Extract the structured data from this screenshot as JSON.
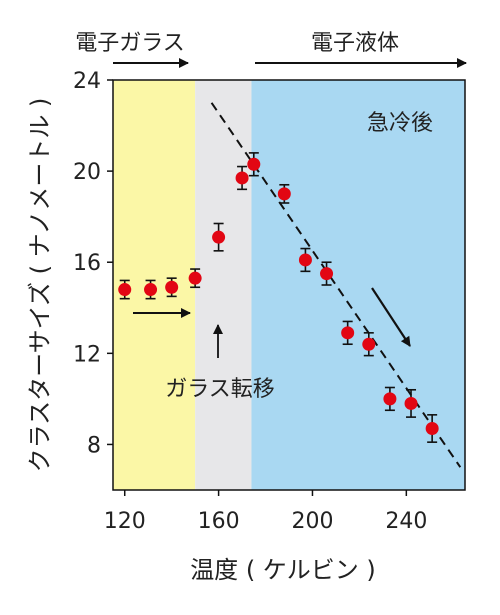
{
  "chart_data": {
    "type": "scatter",
    "xlabel": "温度 ( ケルビン )",
    "ylabel": "クラスターサイズ ( ナノメートル )",
    "xlim": [
      115,
      265
    ],
    "ylim": [
      6,
      24
    ],
    "x_ticks": [
      "120",
      "160",
      "200",
      "240"
    ],
    "y_ticks": [
      "8",
      "12",
      "16",
      "20",
      "24"
    ],
    "x_tick_values": [
      120,
      160,
      200,
      240
    ],
    "y_tick_values": [
      8,
      12,
      16,
      20,
      24
    ],
    "points": [
      {
        "x": 120,
        "y": 14.8,
        "err": 0.4
      },
      {
        "x": 131,
        "y": 14.8,
        "err": 0.4
      },
      {
        "x": 140,
        "y": 14.9,
        "err": 0.4
      },
      {
        "x": 150,
        "y": 15.3,
        "err": 0.4
      },
      {
        "x": 160,
        "y": 17.1,
        "err": 0.6
      },
      {
        "x": 170,
        "y": 19.7,
        "err": 0.5
      },
      {
        "x": 175,
        "y": 20.3,
        "err": 0.5
      },
      {
        "x": 188,
        "y": 19.0,
        "err": 0.4
      },
      {
        "x": 197,
        "y": 16.1,
        "err": 0.5
      },
      {
        "x": 206,
        "y": 15.5,
        "err": 0.5
      },
      {
        "x": 215,
        "y": 12.9,
        "err": 0.5
      },
      {
        "x": 224,
        "y": 12.4,
        "err": 0.5
      },
      {
        "x": 233,
        "y": 10.0,
        "err": 0.5
      },
      {
        "x": 242,
        "y": 9.8,
        "err": 0.6
      },
      {
        "x": 251,
        "y": 8.7,
        "err": 0.6
      }
    ],
    "fit_line": {
      "x1": 157,
      "y1": 23.0,
      "x2": 263,
      "y2": 7.0
    },
    "regions": [
      {
        "from": 115,
        "to": 150,
        "color": "#fbf7a6"
      },
      {
        "from": 150,
        "to": 174,
        "color": "#e7e7e9"
      },
      {
        "from": 174,
        "to": 265,
        "color": "#a9d8f2"
      }
    ],
    "point_color": "#e20613",
    "top_labels": {
      "glass": "電子ガラス",
      "liquid": "電子液体"
    },
    "annotations": {
      "quench": "急冷後",
      "transition": "ガラス転移"
    }
  }
}
